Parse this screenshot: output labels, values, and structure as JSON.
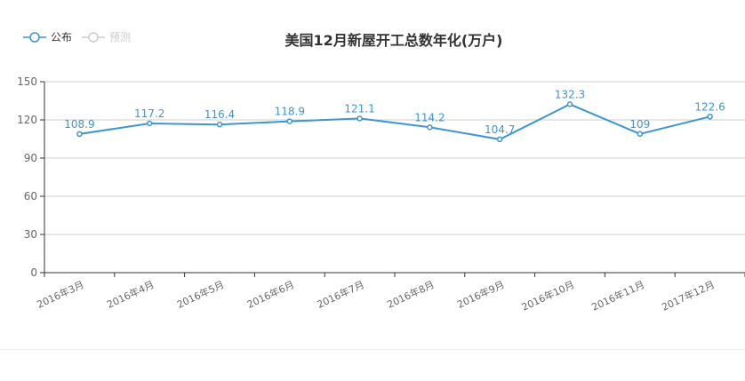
{
  "chart_data": {
    "type": "line",
    "title": "美国12月新屋开工总数年化(万户)",
    "categories": [
      "2016年3月",
      "2016年4月",
      "2016年5月",
      "2016年6月",
      "2016年7月",
      "2016年8月",
      "2016年9月",
      "2016年10月",
      "2016年11月",
      "2017年12月"
    ],
    "series": [
      {
        "name": "公布",
        "values": [
          108.9,
          117.2,
          116.4,
          118.9,
          121.1,
          114.2,
          104.7,
          132.3,
          109,
          122.6
        ]
      }
    ],
    "data_labels": [
      "108.9",
      "117.2",
      "116.4",
      "118.9",
      "121.1",
      "114.2",
      "104.7",
      "132.3",
      "109",
      "122.6"
    ],
    "legend": [
      {
        "name": "公布",
        "active": true
      },
      {
        "name": "预测",
        "active": false
      }
    ],
    "legend_position": "top-left",
    "yticks": [
      "0",
      "30",
      "60",
      "90",
      "120",
      "150"
    ],
    "ylim": [
      0,
      150
    ],
    "xlabel": "",
    "ylabel": "",
    "grid": true,
    "colors": {
      "series": "#3c96d2",
      "inactive": "#cccccc",
      "grid": "#cccccc",
      "axis": "#333333",
      "text": "#666666"
    }
  }
}
